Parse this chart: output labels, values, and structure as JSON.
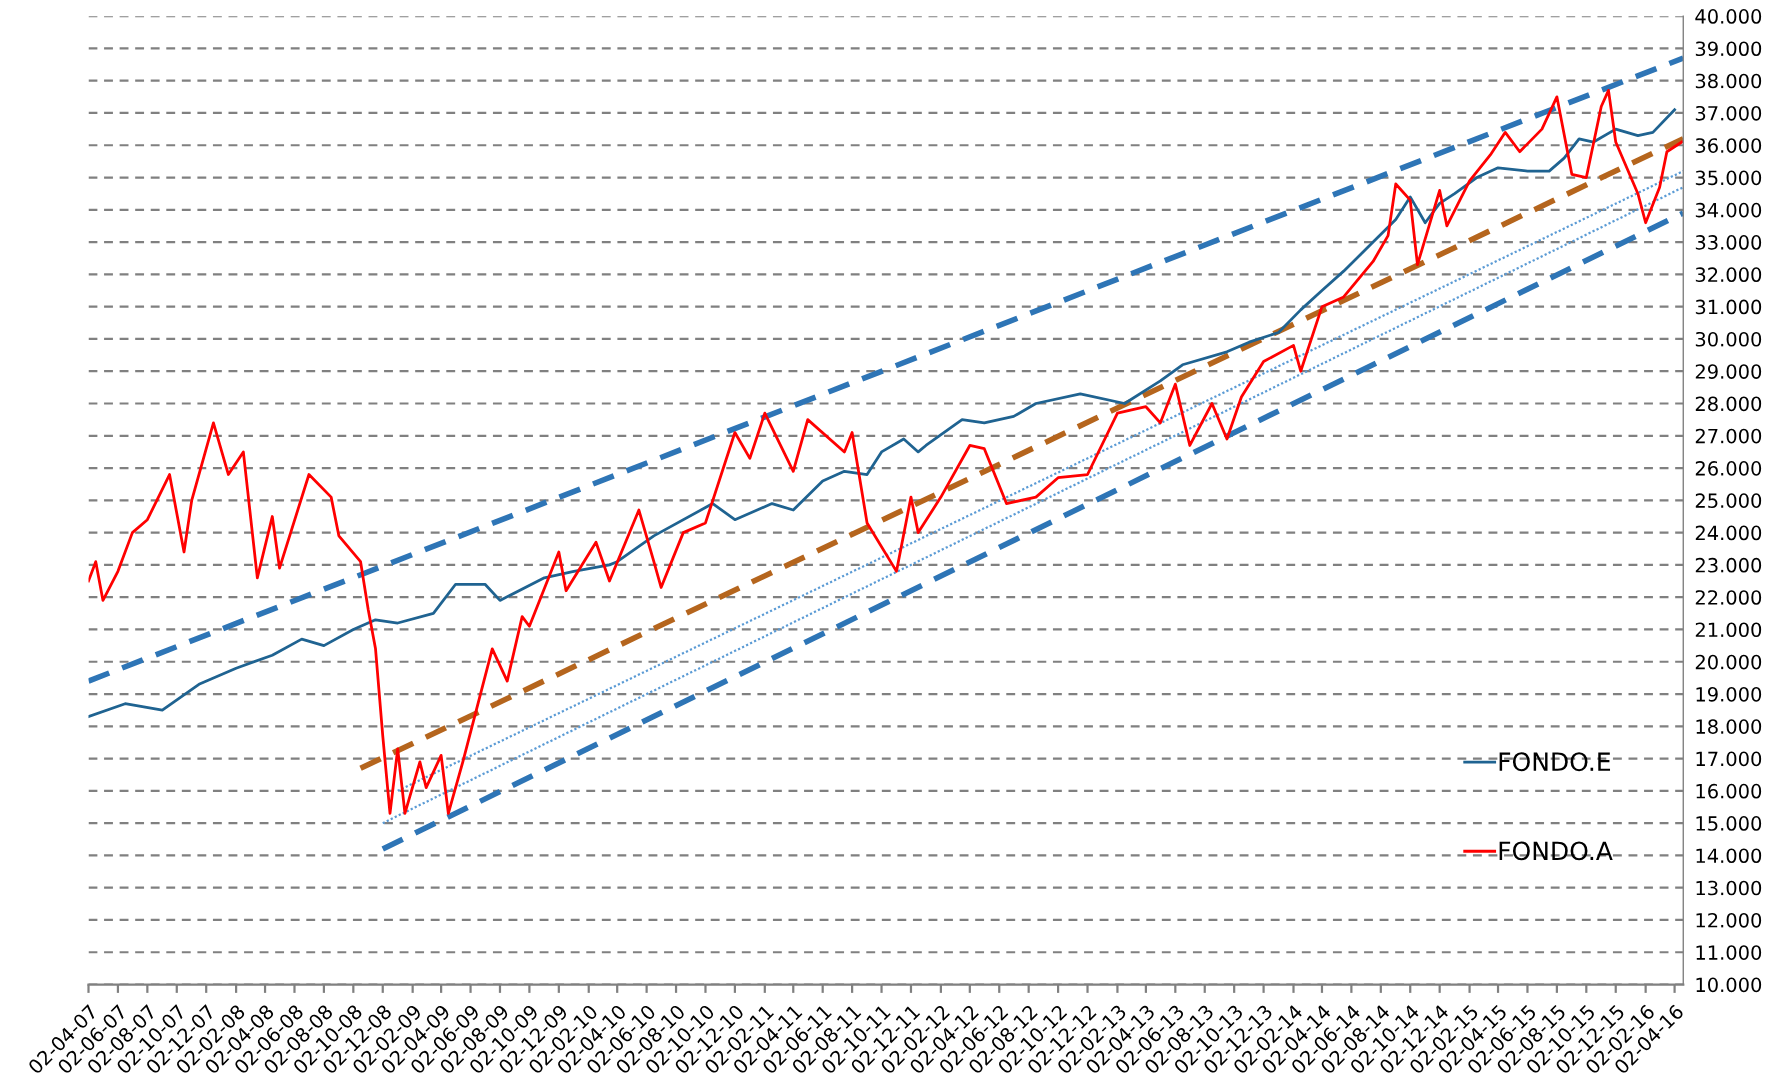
{
  "chart_data": {
    "type": "line",
    "xlim": [
      "2007-04-02",
      "2016-04-20"
    ],
    "xticks": [
      {
        "value": "2007-04-02",
        "label": "02-04-07"
      },
      {
        "value": "2007-06-02",
        "label": "02-06-07"
      },
      {
        "value": "2007-08-02",
        "label": "02-08-07"
      },
      {
        "value": "2007-10-02",
        "label": "02-10-07"
      },
      {
        "value": "2007-12-02",
        "label": "02-12-07"
      },
      {
        "value": "2008-02-02",
        "label": "02-02-08"
      },
      {
        "value": "2008-04-02",
        "label": "02-04-08"
      },
      {
        "value": "2008-06-02",
        "label": "02-06-08"
      },
      {
        "value": "2008-08-02",
        "label": "02-08-08"
      },
      {
        "value": "2008-10-02",
        "label": "02-10-08"
      },
      {
        "value": "2008-12-02",
        "label": "02-12-08"
      },
      {
        "value": "2009-02-02",
        "label": "02-02-09"
      },
      {
        "value": "2009-04-02",
        "label": "02-04-09"
      },
      {
        "value": "2009-06-02",
        "label": "02-06-09"
      },
      {
        "value": "2009-08-02",
        "label": "02-08-09"
      },
      {
        "value": "2009-10-02",
        "label": "02-10-09"
      },
      {
        "value": "2009-12-02",
        "label": "02-12-09"
      },
      {
        "value": "2010-02-02",
        "label": "02-02-10"
      },
      {
        "value": "2010-04-02",
        "label": "02-04-10"
      },
      {
        "value": "2010-06-02",
        "label": "02-06-10"
      },
      {
        "value": "2010-08-02",
        "label": "02-08-10"
      },
      {
        "value": "2010-10-02",
        "label": "02-10-10"
      },
      {
        "value": "2010-12-02",
        "label": "02-12-10"
      },
      {
        "value": "2011-02-02",
        "label": "02-02-11"
      },
      {
        "value": "2011-04-02",
        "label": "02-04-11"
      },
      {
        "value": "2011-06-02",
        "label": "02-06-11"
      },
      {
        "value": "2011-08-02",
        "label": "02-08-11"
      },
      {
        "value": "2011-10-02",
        "label": "02-10-11"
      },
      {
        "value": "2011-12-02",
        "label": "02-12-11"
      },
      {
        "value": "2012-02-02",
        "label": "02-02-12"
      },
      {
        "value": "2012-04-02",
        "label": "02-04-12"
      },
      {
        "value": "2012-06-02",
        "label": "02-06-12"
      },
      {
        "value": "2012-08-02",
        "label": "02-08-12"
      },
      {
        "value": "2012-10-02",
        "label": "02-10-12"
      },
      {
        "value": "2012-12-02",
        "label": "02-12-12"
      },
      {
        "value": "2013-02-02",
        "label": "02-02-13"
      },
      {
        "value": "2013-04-02",
        "label": "02-04-13"
      },
      {
        "value": "2013-06-02",
        "label": "02-06-13"
      },
      {
        "value": "2013-08-02",
        "label": "02-08-13"
      },
      {
        "value": "2013-10-02",
        "label": "02-10-13"
      },
      {
        "value": "2013-12-02",
        "label": "02-12-13"
      },
      {
        "value": "2014-02-02",
        "label": "02-02-14"
      },
      {
        "value": "2014-04-02",
        "label": "02-04-14"
      },
      {
        "value": "2014-06-02",
        "label": "02-06-14"
      },
      {
        "value": "2014-08-02",
        "label": "02-08-14"
      },
      {
        "value": "2014-10-02",
        "label": "02-10-14"
      },
      {
        "value": "2014-12-02",
        "label": "02-12-14"
      },
      {
        "value": "2015-02-02",
        "label": "02-02-15"
      },
      {
        "value": "2015-04-02",
        "label": "02-04-15"
      },
      {
        "value": "2015-06-02",
        "label": "02-06-15"
      },
      {
        "value": "2015-08-02",
        "label": "02-08-15"
      },
      {
        "value": "2015-10-02",
        "label": "02-10-15"
      },
      {
        "value": "2015-12-02",
        "label": "02-12-15"
      },
      {
        "value": "2016-02-02",
        "label": "02-02-16"
      },
      {
        "value": "2016-04-02",
        "label": "02-04-16"
      }
    ],
    "ylim": [
      10,
      40
    ],
    "yticks": [
      {
        "value": 10,
        "label": "10.000"
      },
      {
        "value": 11,
        "label": "11.000"
      },
      {
        "value": 12,
        "label": "12.000"
      },
      {
        "value": 13,
        "label": "13.000"
      },
      {
        "value": 14,
        "label": "14.000"
      },
      {
        "value": 15,
        "label": "15.000"
      },
      {
        "value": 16,
        "label": "16.000"
      },
      {
        "value": 17,
        "label": "17.000"
      },
      {
        "value": 18,
        "label": "18.000"
      },
      {
        "value": 19,
        "label": "19.000"
      },
      {
        "value": 20,
        "label": "20.000"
      },
      {
        "value": 21,
        "label": "21.000"
      },
      {
        "value": 22,
        "label": "22.000"
      },
      {
        "value": 23,
        "label": "23.000"
      },
      {
        "value": 24,
        "label": "24.000"
      },
      {
        "value": 25,
        "label": "25.000"
      },
      {
        "value": 26,
        "label": "26.000"
      },
      {
        "value": 27,
        "label": "27.000"
      },
      {
        "value": 28,
        "label": "28.000"
      },
      {
        "value": 29,
        "label": "29.000"
      },
      {
        "value": 30,
        "label": "30.000"
      },
      {
        "value": 31,
        "label": "31.000"
      },
      {
        "value": 32,
        "label": "32.000"
      },
      {
        "value": 33,
        "label": "33.000"
      },
      {
        "value": 34,
        "label": "34.000"
      },
      {
        "value": 35,
        "label": "35.000"
      },
      {
        "value": 36,
        "label": "36.000"
      },
      {
        "value": 37,
        "label": "37.000"
      },
      {
        "value": 38,
        "label": "38.000"
      },
      {
        "value": 39,
        "label": "39.000"
      },
      {
        "value": 40,
        "label": "40.000"
      }
    ],
    "grid": "y",
    "legend": "bottom right",
    "marker": "none",
    "line_style": "solid",
    "series": [
      {
        "type": "line",
        "color": "#2e75b6",
        "line_style": "dashed",
        "x": [
          "2007-04-02",
          "2016-04-20"
        ],
        "values": [
          19.4,
          38.7
        ]
      },
      {
        "type": "line",
        "color": "#b5651d",
        "line_style": "dashed",
        "x": [
          "2008-10-17",
          "2016-04-20"
        ],
        "values": [
          16.7,
          36.2
        ]
      },
      {
        "type": "line",
        "color": "#5b9bd5",
        "line_style": "dotted",
        "x": [
          "2009-01-02",
          "2016-04-20"
        ],
        "values": [
          16.0,
          35.2
        ]
      },
      {
        "type": "line",
        "color": "#5b9bd5",
        "line_style": "dotted",
        "x": [
          "2008-12-02",
          "2016-04-20"
        ],
        "values": [
          15.0,
          34.7
        ]
      },
      {
        "type": "line",
        "color": "#2e75b6",
        "line_style": "dashed",
        "x": [
          "2008-12-02",
          "2016-04-20"
        ],
        "values": [
          14.2,
          33.9
        ]
      },
      {
        "name": "FONDO.E",
        "color": "#1f6391",
        "x": [
          "2007-04-02",
          "2007-06-17",
          "2007-09-02",
          "2007-11-17",
          "2008-02-02",
          "2008-04-17",
          "2008-06-17",
          "2008-08-02",
          "2008-10-02",
          "2008-11-17",
          "2009-01-02",
          "2009-03-17",
          "2009-05-02",
          "2009-07-02",
          "2009-08-02",
          "2009-11-02",
          "2010-01-02",
          "2010-03-17",
          "2010-04-02",
          "2010-06-17",
          "2010-10-17",
          "2010-12-02",
          "2011-02-17",
          "2011-04-02",
          "2011-06-02",
          "2011-07-17",
          "2011-09-02",
          "2011-10-02",
          "2011-11-17",
          "2011-12-17",
          "2012-01-02",
          "2012-03-17",
          "2012-05-02",
          "2012-07-02",
          "2012-08-17",
          "2012-11-17",
          "2013-02-17",
          "2013-05-02",
          "2013-06-17",
          "2013-09-17",
          "2013-11-02",
          "2014-01-02",
          "2014-02-17",
          "2014-04-02",
          "2014-05-17",
          "2014-07-17",
          "2014-09-02",
          "2014-10-02",
          "2014-11-02",
          "2014-12-02",
          "2015-01-02",
          "2015-02-17",
          "2015-04-02",
          "2015-06-02",
          "2015-07-17",
          "2015-08-17",
          "2015-09-17",
          "2015-10-17",
          "2015-12-02",
          "2016-01-17",
          "2016-02-17",
          "2016-04-02"
        ],
        "values": [
          18.3,
          18.7,
          18.5,
          19.3,
          19.8,
          20.2,
          20.7,
          20.5,
          21.0,
          21.3,
          21.2,
          21.5,
          22.4,
          22.4,
          21.9,
          22.6,
          22.8,
          23.0,
          23.1,
          23.9,
          24.9,
          24.4,
          24.9,
          24.7,
          25.6,
          25.9,
          25.8,
          26.5,
          26.9,
          26.5,
          26.7,
          27.5,
          27.4,
          27.6,
          28.0,
          28.3,
          28.0,
          28.7,
          29.2,
          29.6,
          29.9,
          30.2,
          30.9,
          31.5,
          32.1,
          33.0,
          33.7,
          34.4,
          33.6,
          34.2,
          34.5,
          35.0,
          35.3,
          35.2,
          35.2,
          35.6,
          36.2,
          36.1,
          36.5,
          36.3,
          36.4,
          37.1
        ]
      },
      {
        "name": "FONDO.A",
        "color": "#ff0000",
        "x": [
          "2007-04-02",
          "2007-04-17",
          "2007-05-02",
          "2007-06-02",
          "2007-07-02",
          "2007-08-02",
          "2007-09-17",
          "2007-10-17",
          "2007-11-02",
          "2007-12-17",
          "2008-01-17",
          "2008-02-17",
          "2008-03-17",
          "2008-04-17",
          "2008-05-02",
          "2008-07-02",
          "2008-08-17",
          "2008-09-02",
          "2008-10-17",
          "2008-11-02",
          "2008-11-17",
          "2008-12-02",
          "2008-12-17",
          "2009-01-02",
          "2009-01-17",
          "2009-02-17",
          "2009-03-02",
          "2009-04-02",
          "2009-04-17",
          "2009-05-17",
          "2009-07-17",
          "2009-08-17",
          "2009-09-17",
          "2009-10-02",
          "2009-12-02",
          "2009-12-17",
          "2010-02-17",
          "2010-03-17",
          "2010-05-17",
          "2010-06-17",
          "2010-07-02",
          "2010-08-17",
          "2010-10-02",
          "2010-12-02",
          "2011-01-02",
          "2011-02-02",
          "2011-04-02",
          "2011-05-02",
          "2011-07-17",
          "2011-08-02",
          "2011-09-02",
          "2011-11-02",
          "2011-12-02",
          "2011-12-17",
          "2012-02-02",
          "2012-04-02",
          "2012-05-02",
          "2012-06-17",
          "2012-08-17",
          "2012-10-02",
          "2012-12-02",
          "2013-02-02",
          "2013-04-02",
          "2013-05-02",
          "2013-06-02",
          "2013-07-02",
          "2013-08-17",
          "2013-09-17",
          "2013-10-17",
          "2013-12-02",
          "2014-02-02",
          "2014-02-17",
          "2014-04-02",
          "2014-05-17",
          "2014-07-17",
          "2014-08-17",
          "2014-09-02",
          "2014-10-02",
          "2014-10-17",
          "2014-12-02",
          "2014-12-17",
          "2015-02-02",
          "2015-03-17",
          "2015-04-17",
          "2015-05-17",
          "2015-07-02",
          "2015-08-02",
          "2015-09-02",
          "2015-10-02",
          "2015-11-02",
          "2015-11-17",
          "2015-12-02",
          "2016-01-17",
          "2016-02-02",
          "2016-03-02",
          "2016-03-17",
          "2016-04-17"
        ],
        "values": [
          22.5,
          23.1,
          21.9,
          22.8,
          24.0,
          24.4,
          25.8,
          23.4,
          25.0,
          27.4,
          25.8,
          26.5,
          22.6,
          24.5,
          22.9,
          25.8,
          25.1,
          23.9,
          23.1,
          21.6,
          20.4,
          17.7,
          15.3,
          17.3,
          15.3,
          16.9,
          16.1,
          17.1,
          15.3,
          16.9,
          20.4,
          19.4,
          21.4,
          21.1,
          23.4,
          22.2,
          23.7,
          22.5,
          24.7,
          23.1,
          22.3,
          24.0,
          24.3,
          27.1,
          26.3,
          27.7,
          25.9,
          27.5,
          26.5,
          27.1,
          24.3,
          22.8,
          25.1,
          24.0,
          25.1,
          26.7,
          26.6,
          24.9,
          25.1,
          25.7,
          25.8,
          27.7,
          27.9,
          27.4,
          28.6,
          26.7,
          28.0,
          26.9,
          28.2,
          29.3,
          29.8,
          29.0,
          31.0,
          31.3,
          32.4,
          33.2,
          34.8,
          34.3,
          32.3,
          34.6,
          33.5,
          34.9,
          35.7,
          36.4,
          35.8,
          36.5,
          37.5,
          35.1,
          35.0,
          37.2,
          37.7,
          36.1,
          34.5,
          33.6,
          34.7,
          35.8,
          36.1
        ]
      }
    ]
  }
}
